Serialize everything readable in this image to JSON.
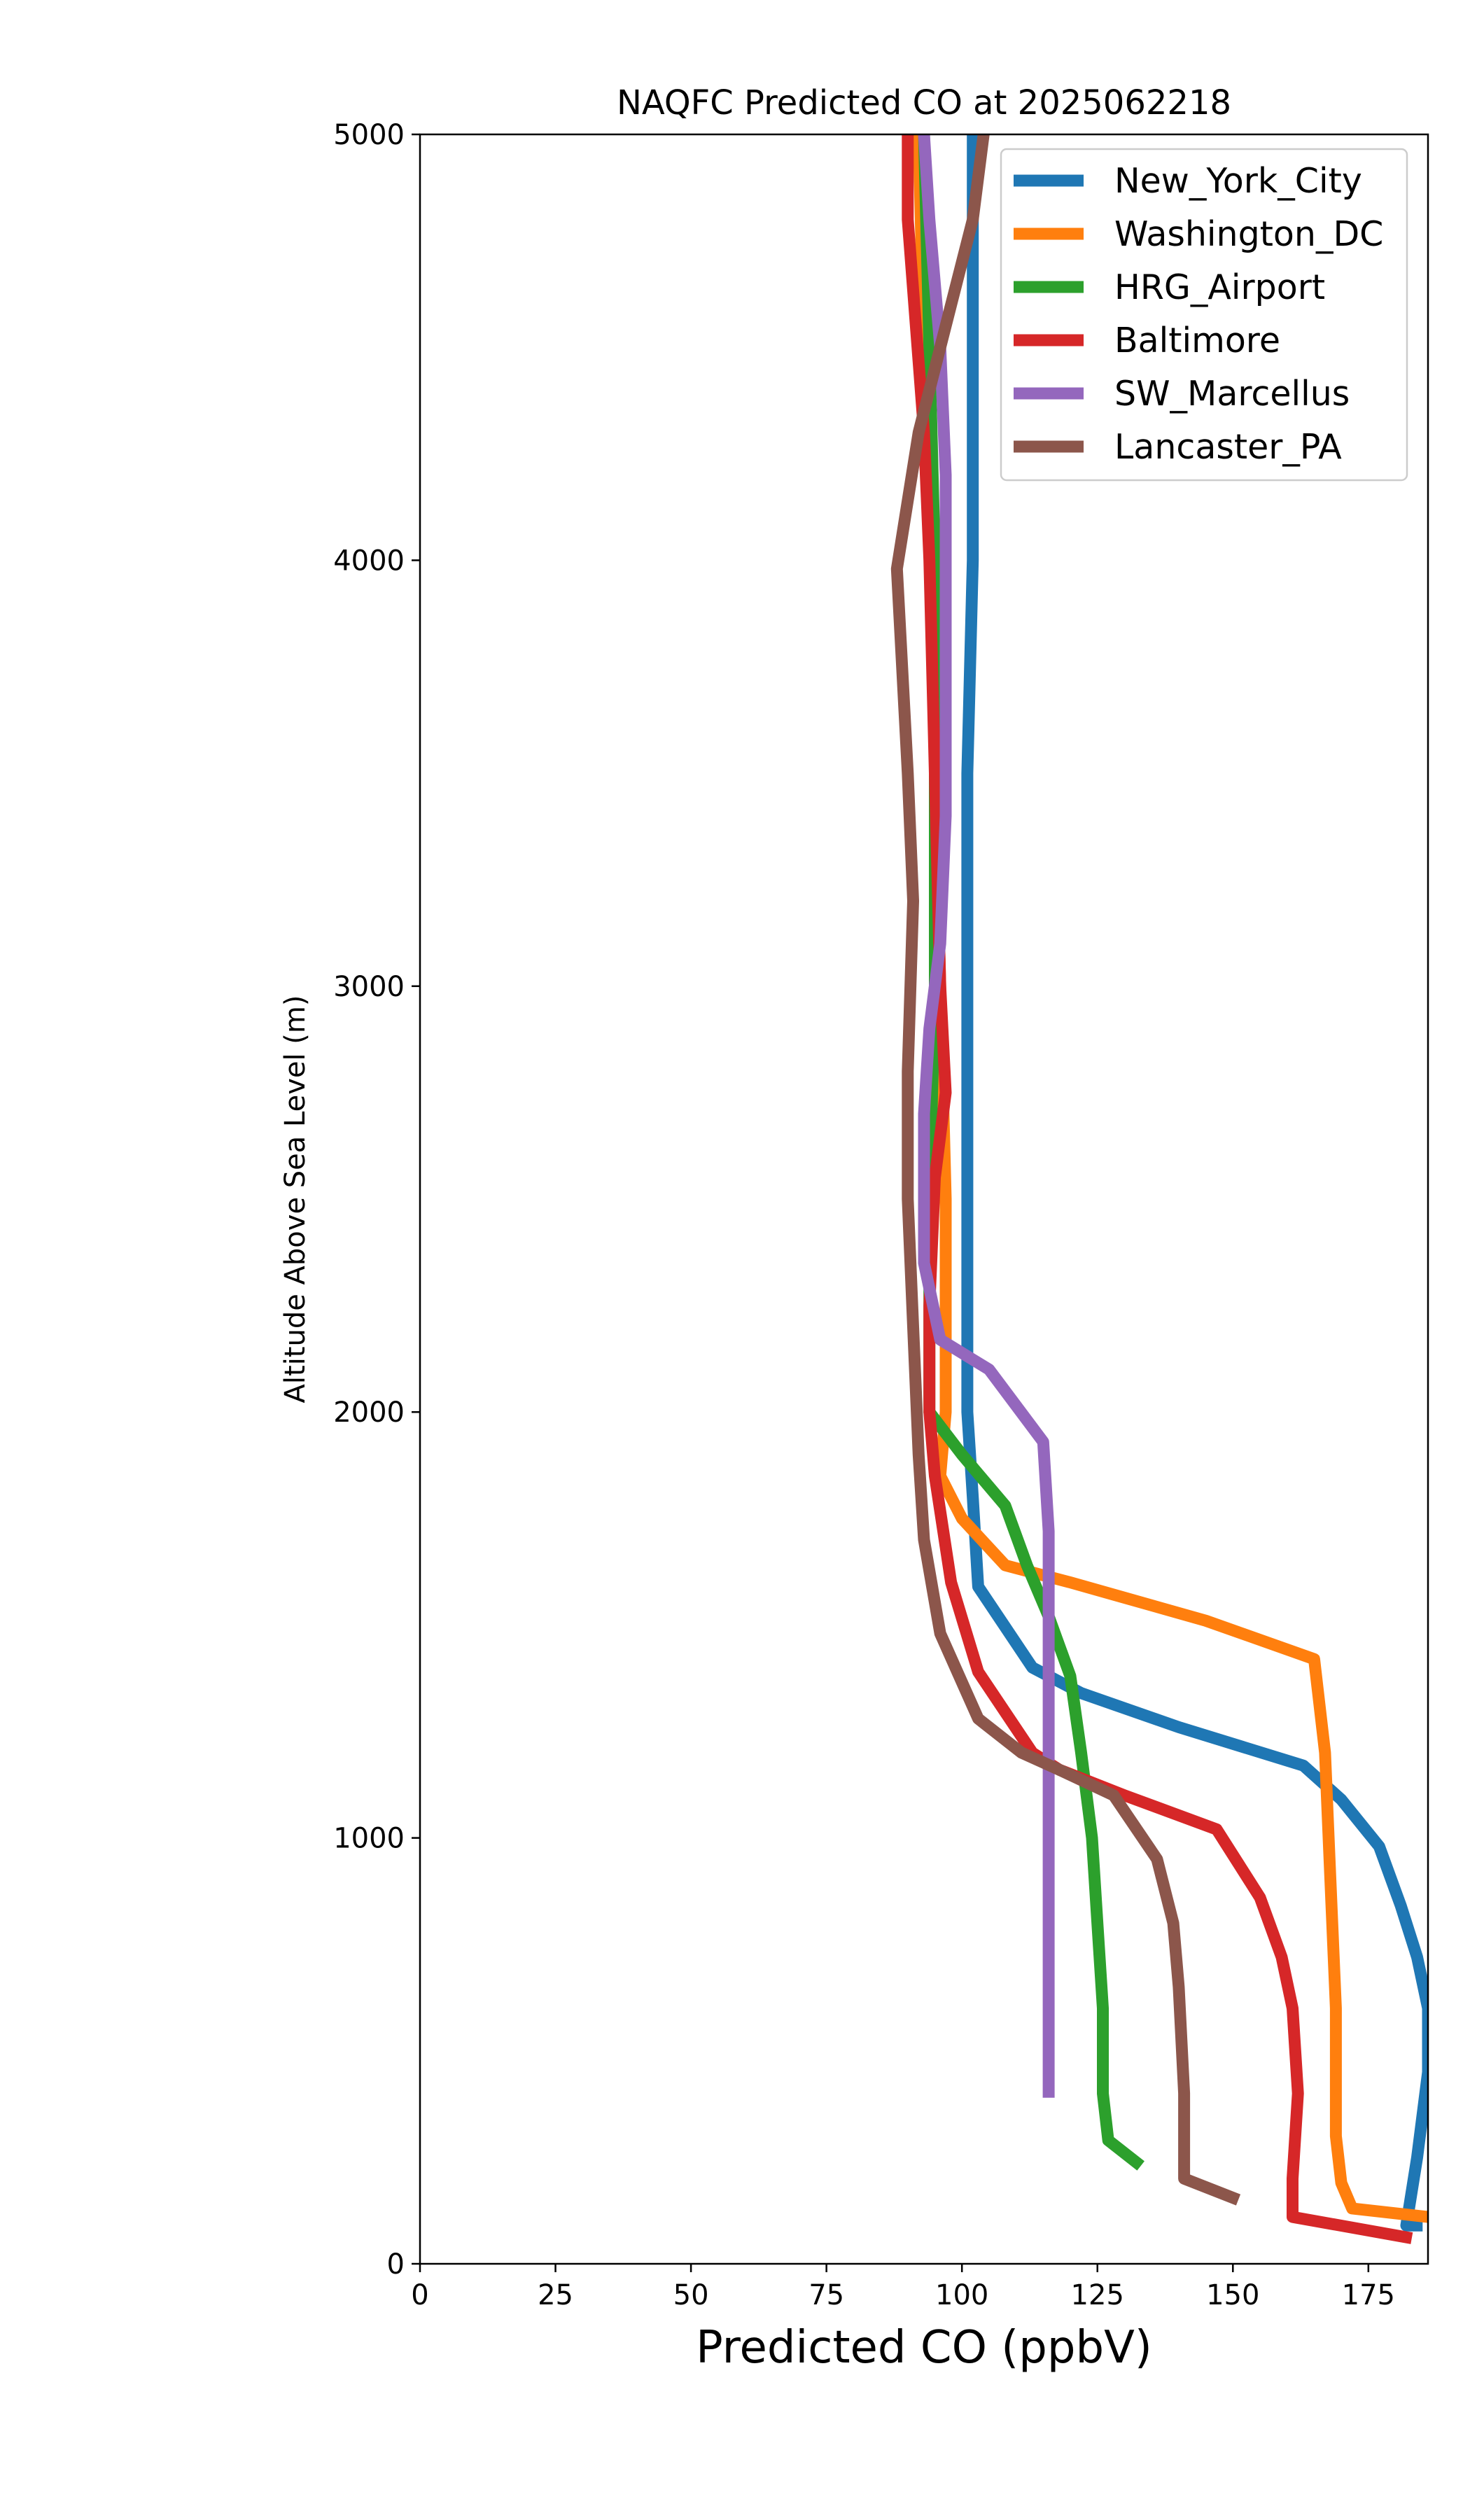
{
  "chart_data": {
    "type": "line",
    "title": "NAQFC Predicted CO at 2025062218",
    "xlabel": "Predicted CO (ppbV)",
    "ylabel": "Altitude Above Sea Level (m)",
    "xlim": [
      0,
      186
    ],
    "ylim": [
      0,
      5000
    ],
    "xticks": [
      0,
      25,
      50,
      75,
      100,
      125,
      150,
      175
    ],
    "yticks": [
      0,
      1000,
      2000,
      3000,
      4000,
      5000
    ],
    "grid": false,
    "legend_position": "top-right",
    "series": [
      {
        "name": "New_York_City",
        "color": "#1f77b4",
        "points": [
          [
            185,
            90
          ],
          [
            182,
            90
          ],
          [
            184,
            250
          ],
          [
            186,
            450
          ],
          [
            186,
            600
          ],
          [
            184,
            720
          ],
          [
            181,
            840
          ],
          [
            177,
            980
          ],
          [
            170,
            1090
          ],
          [
            163,
            1170
          ],
          [
            140,
            1260
          ],
          [
            122,
            1340
          ],
          [
            113,
            1400
          ],
          [
            103,
            1590
          ],
          [
            102,
            1800
          ],
          [
            101,
            2000
          ],
          [
            101,
            2500
          ],
          [
            101,
            3000
          ],
          [
            101,
            3500
          ],
          [
            102,
            4000
          ],
          [
            102,
            4500
          ],
          [
            102,
            5000
          ]
        ]
      },
      {
        "name": "Washington_DC",
        "color": "#ff7f0e",
        "points": [
          [
            186,
            110
          ],
          [
            172,
            130
          ],
          [
            170,
            190
          ],
          [
            169,
            300
          ],
          [
            169,
            600
          ],
          [
            168,
            900
          ],
          [
            167,
            1200
          ],
          [
            165,
            1420
          ],
          [
            145,
            1510
          ],
          [
            120,
            1600
          ],
          [
            108,
            1640
          ],
          [
            100,
            1750
          ],
          [
            96,
            1850
          ],
          [
            97,
            2000
          ],
          [
            97,
            2500
          ],
          [
            96,
            3000
          ],
          [
            95,
            3500
          ],
          [
            95,
            4000
          ],
          [
            93,
            4500
          ],
          [
            92,
            5000
          ]
        ]
      },
      {
        "name": "HRG_Airport",
        "color": "#2ca02c",
        "points": [
          [
            133,
            230
          ],
          [
            127,
            290
          ],
          [
            126,
            400
          ],
          [
            126,
            600
          ],
          [
            125,
            800
          ],
          [
            124,
            1000
          ],
          [
            122,
            1200
          ],
          [
            120,
            1380
          ],
          [
            116,
            1520
          ],
          [
            112,
            1640
          ],
          [
            108,
            1780
          ],
          [
            100,
            1900
          ],
          [
            94,
            2000
          ],
          [
            94,
            2500
          ],
          [
            95,
            3000
          ],
          [
            95,
            3500
          ],
          [
            95,
            4000
          ],
          [
            94,
            4500
          ],
          [
            93,
            5000
          ]
        ]
      },
      {
        "name": "Baltimore",
        "color": "#d62728",
        "points": [
          [
            183,
            60
          ],
          [
            161,
            110
          ],
          [
            161,
            200
          ],
          [
            162,
            400
          ],
          [
            161,
            600
          ],
          [
            159,
            720
          ],
          [
            155,
            860
          ],
          [
            147,
            1020
          ],
          [
            130,
            1100
          ],
          [
            118,
            1160
          ],
          [
            113,
            1200
          ],
          [
            103,
            1390
          ],
          [
            98,
            1600
          ],
          [
            95,
            1850
          ],
          [
            94,
            2000
          ],
          [
            94,
            2250
          ],
          [
            95,
            2550
          ],
          [
            97,
            2750
          ],
          [
            96,
            3000
          ],
          [
            95,
            3500
          ],
          [
            94,
            4000
          ],
          [
            93,
            4300
          ],
          [
            90,
            4800
          ],
          [
            90,
            5000
          ]
        ]
      },
      {
        "name": "SW_Marcellus",
        "color": "#9467bd",
        "points": [
          [
            116,
            390
          ],
          [
            116,
            450
          ],
          [
            116,
            700
          ],
          [
            116,
            1000
          ],
          [
            116,
            1300
          ],
          [
            116,
            1550
          ],
          [
            116,
            1720
          ],
          [
            115,
            1930
          ],
          [
            105,
            2100
          ],
          [
            96,
            2170
          ],
          [
            93,
            2350
          ],
          [
            93,
            2500
          ],
          [
            93,
            2700
          ],
          [
            94,
            2900
          ],
          [
            96,
            3100
          ],
          [
            97,
            3400
          ],
          [
            97,
            3800
          ],
          [
            97,
            4200
          ],
          [
            96,
            4500
          ],
          [
            94,
            4800
          ],
          [
            93,
            5000
          ]
        ]
      },
      {
        "name": "Lancaster_PA",
        "color": "#8c564b",
        "points": [
          [
            151,
            150
          ],
          [
            141,
            200
          ],
          [
            141,
            400
          ],
          [
            140,
            650
          ],
          [
            139,
            800
          ],
          [
            136,
            950
          ],
          [
            128,
            1100
          ],
          [
            118,
            1160
          ],
          [
            111,
            1200
          ],
          [
            103,
            1280
          ],
          [
            96,
            1480
          ],
          [
            93,
            1700
          ],
          [
            92,
            1900
          ],
          [
            91,
            2200
          ],
          [
            90,
            2500
          ],
          [
            90,
            2800
          ],
          [
            91,
            3200
          ],
          [
            90,
            3500
          ],
          [
            88,
            3980
          ],
          [
            92,
            4300
          ],
          [
            98,
            4600
          ],
          [
            102,
            4800
          ],
          [
            104,
            5000
          ]
        ]
      }
    ]
  }
}
